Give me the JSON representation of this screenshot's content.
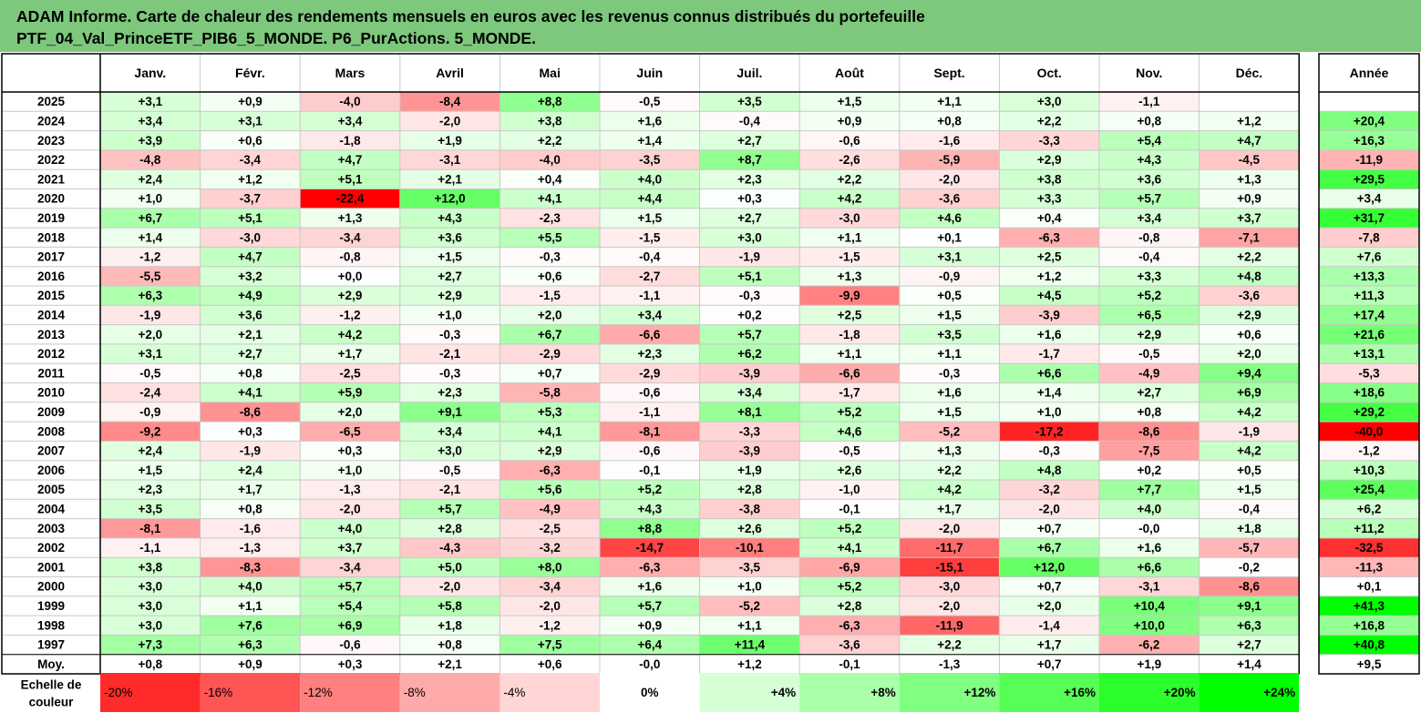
{
  "title": {
    "line1": "ADAM Informe. Carte de chaleur des rendements mensuels en euros avec les revenus connus distribués du portefeuille",
    "line2": "PTF_04_Val_PrinceETF_PIB6_5_MONDE. P6_PurActions. 5_MONDE."
  },
  "chart_data": {
    "type": "heatmap",
    "columns": [
      "Janv.",
      "Févr.",
      "Mars",
      "Avril",
      "Mai",
      "Juin",
      "Juil.",
      "Août",
      "Sept.",
      "Oct.",
      "Nov.",
      "Déc."
    ],
    "year_column_label": "Année",
    "rows": [
      {
        "label": "2025",
        "values": [
          "+3,1",
          "+0,9",
          "-4,0",
          "-8,4",
          "+8,8",
          "-0,5",
          "+3,5",
          "+1,5",
          "+1,1",
          "+3,0",
          "-1,1",
          ""
        ],
        "year": ""
      },
      {
        "label": "2024",
        "values": [
          "+3,4",
          "+3,1",
          "+3,4",
          "-2,0",
          "+3,8",
          "+1,6",
          "-0,4",
          "+0,9",
          "+0,8",
          "+2,2",
          "+0,8",
          "+1,2"
        ],
        "year": "+20,4"
      },
      {
        "label": "2023",
        "values": [
          "+3,9",
          "+0,6",
          "-1,8",
          "+1,9",
          "+2,2",
          "+1,4",
          "+2,7",
          "-0,6",
          "-1,6",
          "-3,3",
          "+5,4",
          "+4,7"
        ],
        "year": "+16,3"
      },
      {
        "label": "2022",
        "values": [
          "-4,8",
          "-3,4",
          "+4,7",
          "-3,1",
          "-4,0",
          "-3,5",
          "+8,7",
          "-2,6",
          "-5,9",
          "+2,9",
          "+4,3",
          "-4,5"
        ],
        "year": "-11,9"
      },
      {
        "label": "2021",
        "values": [
          "+2,4",
          "+1,2",
          "+5,1",
          "+2,1",
          "+0,4",
          "+4,0",
          "+2,3",
          "+2,2",
          "-2,0",
          "+3,8",
          "+3,6",
          "+1,3"
        ],
        "year": "+29,5"
      },
      {
        "label": "2020",
        "values": [
          "+1,0",
          "-3,7",
          "-22,4",
          "+12,0",
          "+4,1",
          "+4,4",
          "+0,3",
          "+4,2",
          "-3,6",
          "+3,3",
          "+5,7",
          "+0,9"
        ],
        "year": "+3,4"
      },
      {
        "label": "2019",
        "values": [
          "+6,7",
          "+5,1",
          "+1,3",
          "+4,3",
          "-2,3",
          "+1,5",
          "+2,7",
          "-3,0",
          "+4,6",
          "+0,4",
          "+3,4",
          "+3,7"
        ],
        "year": "+31,7"
      },
      {
        "label": "2018",
        "values": [
          "+1,4",
          "-3,0",
          "-3,4",
          "+3,6",
          "+5,5",
          "-1,5",
          "+3,0",
          "+1,1",
          "+0,1",
          "-6,3",
          "-0,8",
          "-7,1"
        ],
        "year": "-7,8"
      },
      {
        "label": "2017",
        "values": [
          "-1,2",
          "+4,7",
          "-0,8",
          "+1,5",
          "-0,3",
          "-0,4",
          "-1,9",
          "-1,5",
          "+3,1",
          "+2,5",
          "-0,4",
          "+2,2"
        ],
        "year": "+7,6"
      },
      {
        "label": "2016",
        "values": [
          "-5,5",
          "+3,2",
          "+0,0",
          "+2,7",
          "+0,6",
          "-2,7",
          "+5,1",
          "+1,3",
          "-0,9",
          "+1,2",
          "+3,3",
          "+4,8"
        ],
        "year": "+13,3"
      },
      {
        "label": "2015",
        "values": [
          "+6,3",
          "+4,9",
          "+2,9",
          "+2,9",
          "-1,5",
          "-1,1",
          "-0,3",
          "-9,9",
          "+0,5",
          "+4,5",
          "+5,2",
          "-3,6"
        ],
        "year": "+11,3"
      },
      {
        "label": "2014",
        "values": [
          "-1,9",
          "+3,6",
          "-1,2",
          "+1,0",
          "+2,0",
          "+3,4",
          "+0,2",
          "+2,5",
          "+1,5",
          "-3,9",
          "+6,5",
          "+2,9"
        ],
        "year": "+17,4"
      },
      {
        "label": "2013",
        "values": [
          "+2,0",
          "+2,1",
          "+4,2",
          "-0,3",
          "+6,7",
          "-6,6",
          "+5,7",
          "-1,8",
          "+3,5",
          "+1,6",
          "+2,9",
          "+0,6"
        ],
        "year": "+21,6"
      },
      {
        "label": "2012",
        "values": [
          "+3,1",
          "+2,7",
          "+1,7",
          "-2,1",
          "-2,9",
          "+2,3",
          "+6,2",
          "+1,1",
          "+1,1",
          "-1,7",
          "-0,5",
          "+2,0"
        ],
        "year": "+13,1"
      },
      {
        "label": "2011",
        "values": [
          "-0,5",
          "+0,8",
          "-2,5",
          "-0,3",
          "+0,7",
          "-2,9",
          "-3,9",
          "-6,6",
          "-0,3",
          "+6,6",
          "-4,9",
          "+9,4"
        ],
        "year": "-5,3"
      },
      {
        "label": "2010",
        "values": [
          "-2,4",
          "+4,1",
          "+5,9",
          "+2,3",
          "-5,8",
          "-0,6",
          "+3,4",
          "-1,7",
          "+1,6",
          "+1,4",
          "+2,7",
          "+6,9"
        ],
        "year": "+18,6"
      },
      {
        "label": "2009",
        "values": [
          "-0,9",
          "-8,6",
          "+2,0",
          "+9,1",
          "+5,3",
          "-1,1",
          "+8,1",
          "+5,2",
          "+1,5",
          "+1,0",
          "+0,8",
          "+4,2"
        ],
        "year": "+29,2"
      },
      {
        "label": "2008",
        "values": [
          "-9,2",
          "+0,3",
          "-6,5",
          "+3,4",
          "+4,1",
          "-8,1",
          "-3,3",
          "+4,6",
          "-5,2",
          "-17,2",
          "-8,6",
          "-1,9"
        ],
        "year": "-40,0"
      },
      {
        "label": "2007",
        "values": [
          "+2,4",
          "-1,9",
          "+0,3",
          "+3,0",
          "+2,9",
          "-0,6",
          "-3,9",
          "-0,5",
          "+1,3",
          "-0,3",
          "-7,5",
          "+4,2"
        ],
        "year": "-1,2"
      },
      {
        "label": "2006",
        "values": [
          "+1,5",
          "+2,4",
          "+1,0",
          "-0,5",
          "-6,3",
          "-0,1",
          "+1,9",
          "+2,6",
          "+2,2",
          "+4,8",
          "+0,2",
          "+0,5"
        ],
        "year": "+10,3"
      },
      {
        "label": "2005",
        "values": [
          "+2,3",
          "+1,7",
          "-1,3",
          "-2,1",
          "+5,6",
          "+5,2",
          "+2,8",
          "-1,0",
          "+4,2",
          "-3,2",
          "+7,7",
          "+1,5"
        ],
        "year": "+25,4"
      },
      {
        "label": "2004",
        "values": [
          "+3,5",
          "+0,8",
          "-2,0",
          "+5,7",
          "-4,9",
          "+4,3",
          "-3,8",
          "-0,1",
          "+1,7",
          "-2,0",
          "+4,0",
          "-0,4"
        ],
        "year": "+6,2"
      },
      {
        "label": "2003",
        "values": [
          "-8,1",
          "-1,6",
          "+4,0",
          "+2,8",
          "-2,5",
          "+8,8",
          "+2,6",
          "+5,2",
          "-2,0",
          "+0,7",
          "-0,0",
          "+1,8"
        ],
        "year": "+11,2"
      },
      {
        "label": "2002",
        "values": [
          "-1,1",
          "-1,3",
          "+3,7",
          "-4,3",
          "-3,2",
          "-14,7",
          "-10,1",
          "+4,1",
          "-11,7",
          "+6,7",
          "+1,6",
          "-5,7"
        ],
        "year": "-32,5"
      },
      {
        "label": "2001",
        "values": [
          "+3,8",
          "-8,3",
          "-3,4",
          "+5,0",
          "+8,0",
          "-6,3",
          "-3,5",
          "-6,9",
          "-15,1",
          "+12,0",
          "+6,6",
          "-0,2"
        ],
        "year": "-11,3"
      },
      {
        "label": "2000",
        "values": [
          "+3,0",
          "+4,0",
          "+5,7",
          "-2,0",
          "-3,4",
          "+1,6",
          "+1,0",
          "+5,2",
          "-3,0",
          "+0,7",
          "-3,1",
          "-8,6"
        ],
        "year": "+0,1"
      },
      {
        "label": "1999",
        "values": [
          "+3,0",
          "+1,1",
          "+5,4",
          "+5,8",
          "-2,0",
          "+5,7",
          "-5,2",
          "+2,8",
          "-2,0",
          "+2,0",
          "+10,4",
          "+9,1"
        ],
        "year": "+41,3"
      },
      {
        "label": "1998",
        "values": [
          "+3,0",
          "+7,6",
          "+6,9",
          "+1,8",
          "-1,2",
          "+0,9",
          "+1,1",
          "-6,3",
          "-11,9",
          "-1,4",
          "+10,0",
          "+6,3"
        ],
        "year": "+16,8"
      },
      {
        "label": "1997",
        "values": [
          "+7,3",
          "+6,3",
          "-0,6",
          "+0,8",
          "+7,5",
          "+6,4",
          "+11,4",
          "-3,6",
          "+2,2",
          "+1,7",
          "-6,2",
          "+2,7"
        ],
        "year": "+40,8"
      }
    ],
    "average_row": {
      "label": "Moy.",
      "values": [
        "+0,8",
        "+0,9",
        "+0,3",
        "+2,1",
        "+0,6",
        "-0,0",
        "+1,2",
        "-0,1",
        "-1,3",
        "+0,7",
        "+1,9",
        "+1,4"
      ],
      "year": "+9,5"
    },
    "color_scale": {
      "label_line1": "Echelle de",
      "label_line2": "couleur",
      "steps": [
        "-20%",
        "-16%",
        "-12%",
        "-8%",
        "-4%",
        "0%",
        "+4%",
        "+8%",
        "+12%",
        "+16%",
        "+20%",
        "+24%"
      ]
    },
    "colors": {
      "negative": "#ff0000",
      "zero": "#ffffff",
      "positive": "#00ff00"
    }
  }
}
